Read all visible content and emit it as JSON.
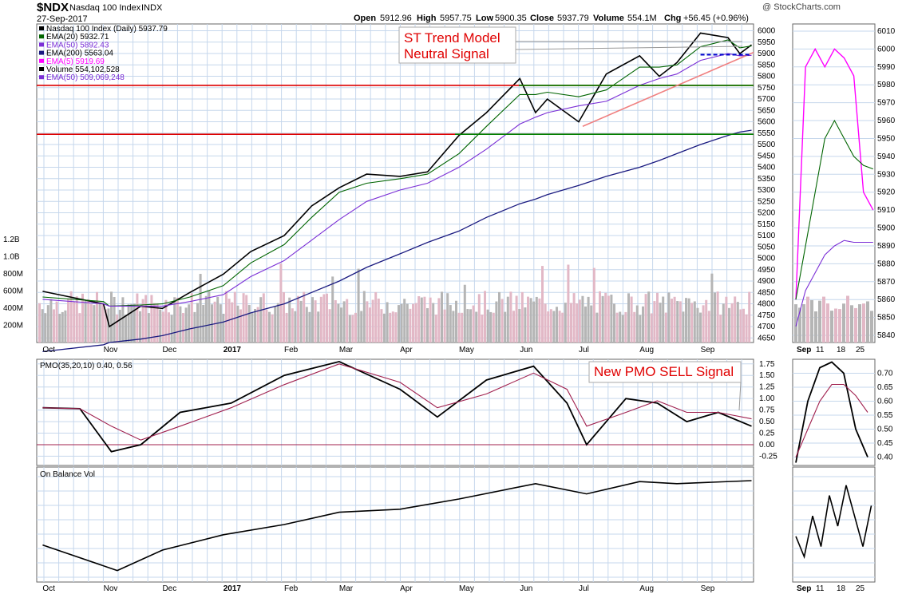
{
  "header": {
    "symbol": "$NDX",
    "name": "Nasdaq 100 Index",
    "exchange": "INDX",
    "date": "27-Sep-2017",
    "ohlc": {
      "open_label": "Open",
      "open": "5912.96",
      "high_label": "High",
      "high": "5957.75",
      "low_label": "Low",
      "low": "5900.35",
      "close_label": "Close",
      "close": "5937.79",
      "volume_label": "Volume",
      "volume": "554.1M",
      "chg_label": "Chg",
      "chg": "+56.45 (+0.96%)"
    },
    "watermark": "@ StockCharts.com"
  },
  "legend": [
    {
      "label": "Nasdaq 100 Index (Daily) 5937.79",
      "color": "#000000"
    },
    {
      "label": "EMA(20) 5932.71",
      "color": "#006400"
    },
    {
      "label": "EMA(50) 5892.43",
      "color": "#7b2fd6"
    },
    {
      "label": "EMA(200) 5563.04",
      "color": "#1a1a80"
    },
    {
      "label": "EMA(5) 5919.69",
      "color": "#ff00ff"
    },
    {
      "label": "Volume 554,102,528",
      "color": "#000000"
    },
    {
      "label": "EMA(50) 509,069,248",
      "color": "#7b2fd6"
    }
  ],
  "annotations": {
    "st_trend_1": "ST Trend Model",
    "st_trend_2": "Neutral Signal",
    "pmo_sell": "New PMO SELL Signal"
  },
  "colors": {
    "grid": "#c6d7ec",
    "price": "#000000",
    "ema20": "#006400",
    "ema50": "#7b2fd6",
    "ema200": "#1a1a80",
    "ema5": "#ff00ff",
    "volume_up": "#b5b5b5",
    "volume_down": "#e2b8c6",
    "pmo_signal": "#a0204e",
    "support_red": "#dd0000",
    "support_green": "#008000",
    "trendline": "#f08080",
    "annotation": "#e00000",
    "dashed": "#0000cc"
  },
  "chart_data": [
    {
      "type": "line",
      "panel": "price",
      "x_labels": [
        "Oct",
        "Nov",
        "Dec",
        "2017",
        "Feb",
        "Mar",
        "Apr",
        "May",
        "Jun",
        "Jul",
        "Aug",
        "Sep"
      ],
      "x": [
        "2016-10-01",
        "2016-11-01",
        "2016-11-04",
        "2016-11-20",
        "2016-12-01",
        "2016-12-15",
        "2017-01-01",
        "2017-01-15",
        "2017-02-01",
        "2017-02-15",
        "2017-03-01",
        "2017-03-15",
        "2017-04-01",
        "2017-04-15",
        "2017-05-01",
        "2017-05-15",
        "2017-06-01",
        "2017-06-09",
        "2017-06-15",
        "2017-07-01",
        "2017-07-15",
        "2017-08-01",
        "2017-08-11",
        "2017-08-20",
        "2017-09-01",
        "2017-09-15",
        "2017-09-21",
        "2017-09-27"
      ],
      "series": [
        {
          "name": "Nasdaq 100 Index (Daily)",
          "values": [
            4855,
            4800,
            4700,
            4790,
            4780,
            4850,
            4930,
            5030,
            5100,
            5230,
            5310,
            5370,
            5360,
            5380,
            5540,
            5640,
            5790,
            5640,
            5700,
            5600,
            5810,
            5890,
            5800,
            5860,
            5990,
            5970,
            5900,
            5938
          ]
        },
        {
          "name": "EMA(20)",
          "values": [
            4830,
            4810,
            4790,
            4795,
            4800,
            4830,
            4880,
            4980,
            5060,
            5180,
            5290,
            5330,
            5350,
            5370,
            5460,
            5580,
            5720,
            5720,
            5730,
            5710,
            5740,
            5840,
            5840,
            5850,
            5930,
            5960,
            5925,
            5933
          ]
        },
        {
          "name": "EMA(50)",
          "values": [
            4820,
            4800,
            4790,
            4790,
            4790,
            4810,
            4840,
            4920,
            4990,
            5080,
            5170,
            5250,
            5300,
            5330,
            5400,
            5480,
            5590,
            5620,
            5640,
            5670,
            5690,
            5760,
            5790,
            5810,
            5870,
            5900,
            5890,
            5892
          ]
        },
        {
          "name": "EMA(200)",
          "values": [
            4590,
            4620,
            4630,
            4645,
            4660,
            4690,
            4720,
            4760,
            4800,
            4850,
            4900,
            4960,
            5020,
            5070,
            5120,
            5180,
            5240,
            5260,
            5280,
            5320,
            5360,
            5400,
            5430,
            5460,
            5500,
            5540,
            5555,
            5563
          ]
        }
      ],
      "y_ticks": [
        6000,
        5950,
        5900,
        5850,
        5800,
        5750,
        5700,
        5650,
        5600,
        5550,
        5500,
        5450,
        5400,
        5350,
        5300,
        5250,
        5200,
        5150,
        5100,
        5050,
        5000,
        4950,
        4900,
        4850,
        4800,
        4750,
        4700,
        4650
      ],
      "ylim": [
        4630,
        6030
      ],
      "horizontal_lines": [
        {
          "name": "resistance-upper",
          "y": 5760
        },
        {
          "name": "resistance-lower",
          "y": 5545
        }
      ],
      "volume_ticks": [
        "1.2B",
        "1.0B",
        "800M",
        "600M",
        "400M",
        "200M"
      ],
      "volume_ylim": [
        0,
        1300000000
      ]
    },
    {
      "type": "line",
      "panel": "pmo",
      "title": "PMO(35,20,10) 0.40, 0.56",
      "x": [
        "2016-10-01",
        "2016-10-20",
        "2016-11-05",
        "2016-11-20",
        "2016-12-10",
        "2017-01-05",
        "2017-02-01",
        "2017-03-01",
        "2017-04-01",
        "2017-04-20",
        "2017-05-15",
        "2017-06-08",
        "2017-06-25",
        "2017-07-05",
        "2017-07-25",
        "2017-08-10",
        "2017-08-25",
        "2017-09-10",
        "2017-09-27"
      ],
      "series": [
        {
          "name": "PMO",
          "values": [
            0.8,
            0.78,
            -0.15,
            0.0,
            0.7,
            0.9,
            1.5,
            1.8,
            1.2,
            0.6,
            1.4,
            1.7,
            0.9,
            0.0,
            1.0,
            0.9,
            0.5,
            0.7,
            0.4
          ]
        },
        {
          "name": "Signal",
          "values": [
            0.8,
            0.78,
            0.4,
            0.1,
            0.4,
            0.8,
            1.3,
            1.75,
            1.35,
            0.8,
            1.1,
            1.55,
            1.2,
            0.4,
            0.7,
            0.95,
            0.7,
            0.7,
            0.56
          ]
        }
      ],
      "y_ticks": [
        1.75,
        1.5,
        1.25,
        1.0,
        0.75,
        0.5,
        0.25,
        0.0,
        -0.25
      ],
      "ylim": [
        -0.45,
        1.85
      ]
    },
    {
      "type": "line",
      "panel": "obv",
      "title": "On Balance Vol",
      "x": [
        "2016-10-01",
        "2016-11-08",
        "2016-12-01",
        "2017-01-01",
        "2017-02-01",
        "2017-03-01",
        "2017-04-01",
        "2017-05-01",
        "2017-06-09",
        "2017-07-05",
        "2017-08-01",
        "2017-08-20",
        "2017-09-27"
      ],
      "series": [
        {
          "name": "On Balance Vol",
          "values": [
            30,
            5,
            25,
            40,
            50,
            62,
            65,
            75,
            90,
            80,
            92,
            90,
            93
          ]
        }
      ],
      "ylim": [
        0,
        100
      ]
    },
    {
      "type": "line",
      "panel": "price-sep",
      "x_labels": [
        "Sep",
        "11",
        "18",
        "25"
      ],
      "y_ticks": [
        6010,
        6000,
        5990,
        5980,
        5970,
        5960,
        5950,
        5940,
        5930,
        5920,
        5910,
        5900,
        5890,
        5880,
        5870,
        5860,
        5850,
        5840
      ],
      "ylim": [
        5836,
        6014
      ],
      "series": [
        {
          "name": "EMA(5)",
          "values": [
            5860,
            5990,
            6000,
            5990,
            6000,
            5995,
            5985,
            5920,
            5910
          ]
        },
        {
          "name": "EMA(20)",
          "values": [
            5860,
            5890,
            5920,
            5950,
            5960,
            5950,
            5940,
            5935,
            5933
          ]
        },
        {
          "name": "EMA(50)",
          "values": [
            5845,
            5865,
            5875,
            5885,
            5890,
            5893,
            5892,
            5892,
            5892
          ]
        }
      ]
    },
    {
      "type": "line",
      "panel": "pmo-sep",
      "y_ticks": [
        0.7,
        0.65,
        0.6,
        0.55,
        0.5,
        0.45,
        0.4
      ],
      "ylim": [
        0.37,
        0.75
      ],
      "series": [
        {
          "name": "PMO",
          "values": [
            0.38,
            0.6,
            0.72,
            0.74,
            0.7,
            0.5,
            0.4
          ]
        },
        {
          "name": "Signal",
          "values": [
            0.4,
            0.5,
            0.6,
            0.66,
            0.66,
            0.62,
            0.56
          ]
        }
      ]
    },
    {
      "type": "line",
      "panel": "obv-sep",
      "series": [
        {
          "name": "On Balance Vol",
          "values": [
            40,
            20,
            60,
            30,
            80,
            50,
            90,
            60,
            30,
            70
          ]
        }
      ]
    }
  ]
}
